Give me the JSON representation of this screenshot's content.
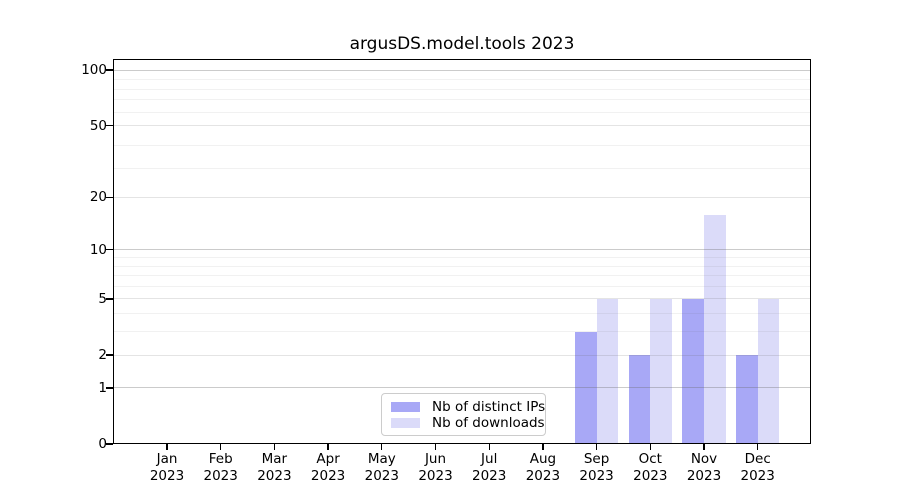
{
  "chart_data": {
    "type": "bar",
    "title": "argusDS.model.tools 2023",
    "categories": [
      "Jan",
      "Feb",
      "Mar",
      "Apr",
      "May",
      "Jun",
      "Jul",
      "Aug",
      "Sep",
      "Oct",
      "Nov",
      "Dec"
    ],
    "x_year": "2023",
    "series": [
      {
        "name": "Nb of distinct IPs",
        "color": "#a8a8f6",
        "values": [
          0,
          0,
          0,
          0,
          0,
          0,
          0,
          0,
          3,
          2,
          5,
          2
        ]
      },
      {
        "name": "Nb of downloads",
        "color": "#dbdbf9",
        "values": [
          0,
          0,
          0,
          0,
          0,
          0,
          0,
          0,
          5,
          5,
          16,
          5
        ]
      }
    ],
    "yscale": "log1p",
    "ylim": [
      0,
      114
    ],
    "yticks": [
      0,
      1,
      2,
      5,
      10,
      20,
      50,
      100
    ],
    "grid": {
      "on": true,
      "major": [
        1,
        10,
        100
      ],
      "medium": [
        2,
        5,
        20,
        50
      ],
      "minor": [
        3,
        4,
        6,
        7,
        8,
        9,
        29,
        39,
        59,
        69,
        79,
        89
      ]
    },
    "legend": {
      "position": "lower center",
      "entries": [
        "Nb of distinct IPs",
        "Nb of downloads"
      ]
    }
  }
}
